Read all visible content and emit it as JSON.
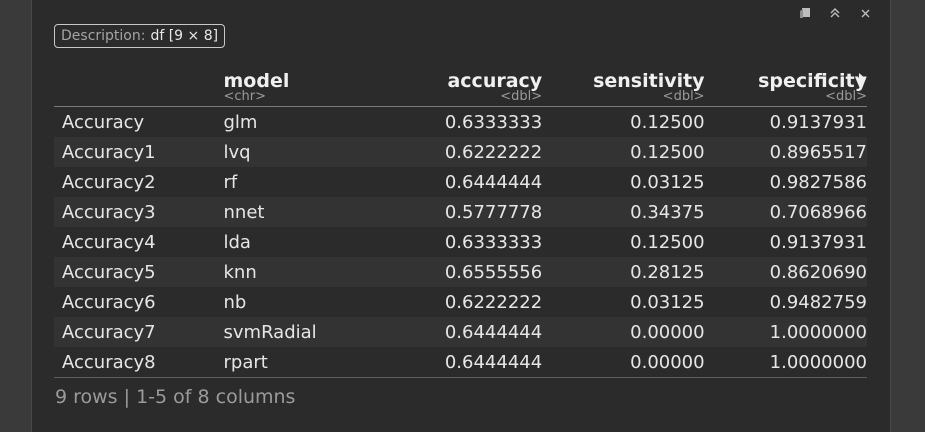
{
  "toolbar": {
    "icons": [
      "clear-icon",
      "collapse-icon",
      "close-icon"
    ],
    "close_glyph": "×",
    "collapse_glyph": "»"
  },
  "description": {
    "label": "Description:",
    "value": "df [9 × 8]"
  },
  "table": {
    "columns": [
      {
        "name": "",
        "type": ""
      },
      {
        "name": "model",
        "type": "<chr>"
      },
      {
        "name": "accuracy",
        "type": "<dbl>"
      },
      {
        "name": "sensitivity",
        "type": "<dbl>"
      },
      {
        "name": "specificity",
        "type": "<dbl>"
      }
    ],
    "rows": [
      [
        "Accuracy",
        "glm",
        "0.6333333",
        "0.12500",
        "0.9137931"
      ],
      [
        "Accuracy1",
        "lvq",
        "0.6222222",
        "0.12500",
        "0.8965517"
      ],
      [
        "Accuracy2",
        "rf",
        "0.6444444",
        "0.03125",
        "0.9827586"
      ],
      [
        "Accuracy3",
        "nnet",
        "0.5777778",
        "0.34375",
        "0.7068966"
      ],
      [
        "Accuracy4",
        "lda",
        "0.6333333",
        "0.12500",
        "0.9137931"
      ],
      [
        "Accuracy5",
        "knn",
        "0.6555556",
        "0.28125",
        "0.8620690"
      ],
      [
        "Accuracy6",
        "nb",
        "0.6222222",
        "0.03125",
        "0.9482759"
      ],
      [
        "Accuracy7",
        "svmRadial",
        "0.6444444",
        "0.00000",
        "1.0000000"
      ],
      [
        "Accuracy8",
        "rpart",
        "0.6444444",
        "0.00000",
        "1.0000000"
      ]
    ]
  },
  "footer": {
    "text": "9 rows | 1-5 of 8 columns"
  },
  "colors": {
    "background": "#2b2b2b",
    "text": "#e6e6e6",
    "muted": "#9b9b9b"
  }
}
